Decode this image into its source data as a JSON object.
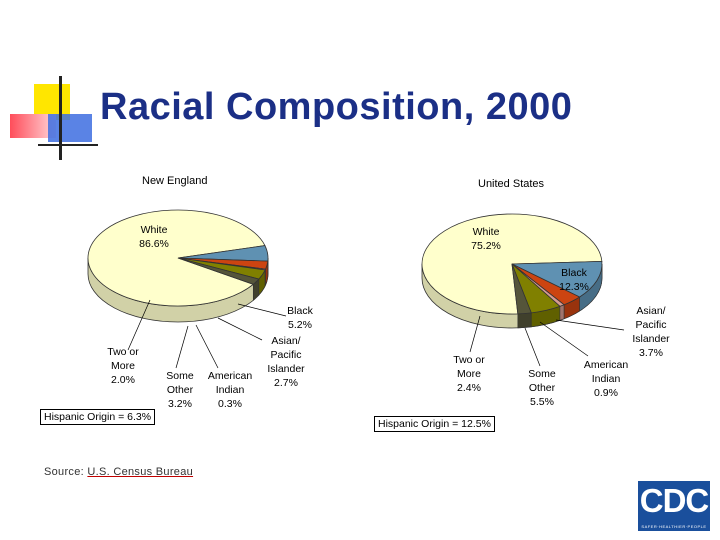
{
  "slide": {
    "title": "Racial Composition, 2000",
    "source_prefix": "Source: ",
    "source_link": "U.S. Census Bureau",
    "logo_text": "CDC",
    "logo_tagline": "SAFER·HEALTHIER·PEOPLE"
  },
  "colors": {
    "title": "#1b2f86",
    "white": "#ffffcc",
    "black": "#5f91b2",
    "asian_pacific_islander": "#cc4411",
    "american_indian": "#d69a90",
    "some_other": "#808000",
    "two_or_more": "#55553a"
  },
  "chart_data": [
    {
      "type": "pie",
      "title": "New England",
      "slices": [
        {
          "label": "White",
          "value": 86.6,
          "display": "White\n86.6%"
        },
        {
          "label": "Black",
          "value": 5.2,
          "display": "Black\n5.2%"
        },
        {
          "label": "Asian/ Pacific Islander",
          "value": 2.7,
          "display": "Asian/\nPacific\nIslander\n2.7%"
        },
        {
          "label": "American Indian",
          "value": 0.3,
          "display": "American\nIndian\n0.3%"
        },
        {
          "label": "Some Other",
          "value": 3.2,
          "display": "Some\nOther\n3.2%"
        },
        {
          "label": "Two or More",
          "value": 2.0,
          "display": "Two or\nMore\n2.0%"
        }
      ],
      "hispanic_origin": "Hispanic Origin = 6.3%"
    },
    {
      "type": "pie",
      "title": "United States",
      "slices": [
        {
          "label": "White",
          "value": 75.2,
          "display": "White\n75.2%"
        },
        {
          "label": "Black",
          "value": 12.3,
          "display": "Black\n12.3%"
        },
        {
          "label": "Asian/ Pacific Islander",
          "value": 3.7,
          "display": "Asian/\nPacific\nIslander\n3.7%"
        },
        {
          "label": "American Indian",
          "value": 0.9,
          "display": "American\nIndian\n0.9%"
        },
        {
          "label": "Some Other",
          "value": 5.5,
          "display": "Some\nOther\n5.5%"
        },
        {
          "label": "Two or More",
          "value": 2.4,
          "display": "Two or\nMore\n2.4%"
        }
      ],
      "hispanic_origin": "Hispanic Origin = 12.5%"
    }
  ]
}
